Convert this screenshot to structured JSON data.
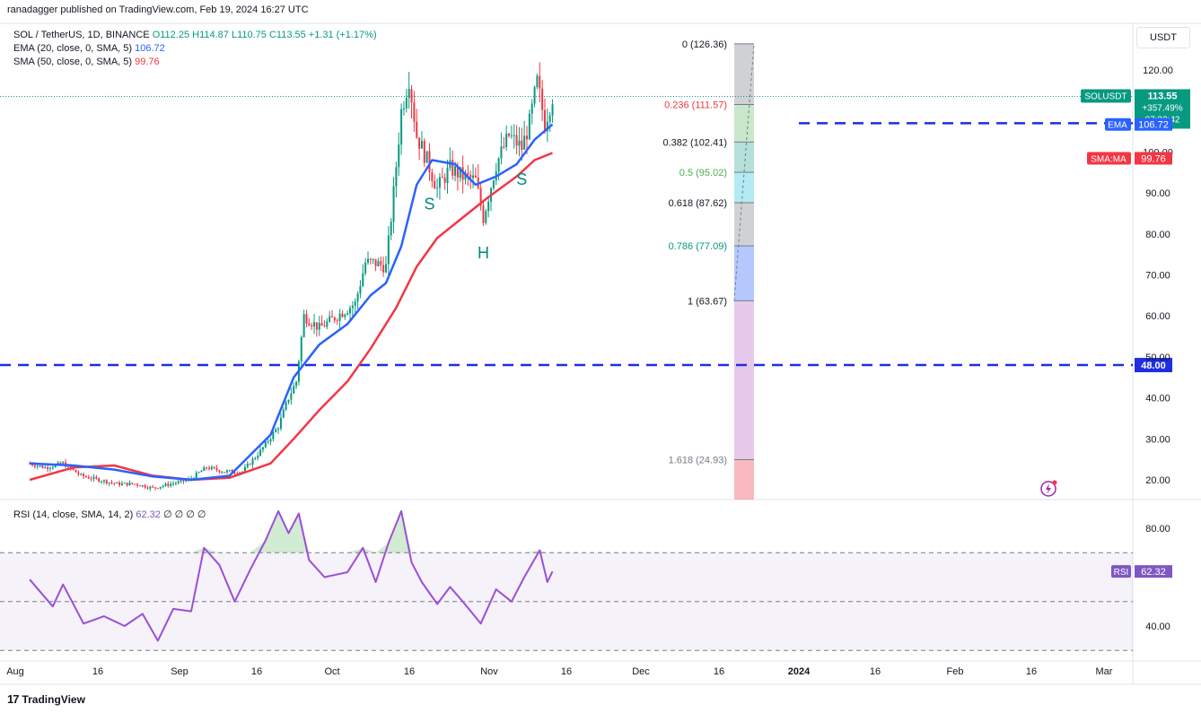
{
  "header": {
    "publisher": "ranadagger published on TradingView.com, Feb 19, 2024 16:27 UTC",
    "symbol": "SOL / TetherUS, 1D, BINANCE",
    "ohlc": "O112.25 H114.87 L110.75 C113.55 +1.31 (+1.17%)",
    "ema_label": "EMA (20, close, 0, SMA, 5)",
    "ema_value": "106.72",
    "sma_label": "SMA (50, close, 0, SMA, 5)",
    "sma_value": "99.76",
    "currency": "USDT",
    "rsi_label": "RSI (14, close, SMA, 14, 2)",
    "rsi_value": "62.32",
    "rsi_extra": "∅ ∅ ∅ ∅"
  },
  "footer": {
    "brand": "TradingView"
  },
  "colors": {
    "up": "#089981",
    "down": "#f23645",
    "ema": "#2962ff",
    "sma": "#f23645",
    "rsi": "#9c4fd6",
    "level": "#1f2fe0",
    "pattern": "#00897b"
  },
  "chart_data": {
    "type": "line",
    "x_ticks": [
      "Aug",
      "16",
      "Sep",
      "16",
      "Oct",
      "16",
      "Nov",
      "16",
      "Dec",
      "16",
      "2024",
      "16",
      "Feb",
      "16",
      "Mar"
    ],
    "y_ticks": [
      "120.00",
      "110.00",
      "100.00",
      "90.00",
      "80.00",
      "70.00",
      "60.00",
      "50.00",
      "40.00",
      "30.00",
      "20.00"
    ],
    "ylim": [
      10,
      126
    ],
    "price_series": {
      "name": "SOLUSDT",
      "x": [
        "Jul 30",
        "Aug 05",
        "Aug 12",
        "Aug 19",
        "Aug 26",
        "Sep 02",
        "Sep 09",
        "Sep 16",
        "Sep 23",
        "Sep 30",
        "Oct 07",
        "Oct 14",
        "Oct 21",
        "Oct 28",
        "Nov 04",
        "Nov 08",
        "Nov 11",
        "Nov 14",
        "Nov 20",
        "Nov 27",
        "Dec 04",
        "Dec 08",
        "Dec 11",
        "Dec 16",
        "Dec 19",
        "Dec 22",
        "Dec 25",
        "Dec 28",
        "Jan 01",
        "Jan 05",
        "Jan 10",
        "Jan 15",
        "Jan 20",
        "Jan 23",
        "Jan 28",
        "Feb 02",
        "Feb 07",
        "Feb 10",
        "Feb 13",
        "Feb 16",
        "Feb 19"
      ],
      "values": [
        24,
        23,
        24,
        21,
        20,
        19,
        19,
        18,
        19,
        20,
        23,
        22,
        22,
        27,
        33,
        40,
        44,
        60,
        57,
        60,
        63,
        73,
        73,
        72,
        90,
        110,
        118,
        104,
        98,
        91,
        96,
        94,
        93,
        84,
        97,
        104,
        101,
        107,
        117,
        107,
        113.55
      ]
    },
    "ema_series": {
      "name": "EMA",
      "x": [
        "Jul 30",
        "Aug 16",
        "Sep 01",
        "Sep 16",
        "Oct 01",
        "Oct 16",
        "Nov 01",
        "Nov 10",
        "Nov 20",
        "Dec 01",
        "Dec 10",
        "Dec 16",
        "Dec 22",
        "Dec 28",
        "Jan 03",
        "Jan 12",
        "Jan 20",
        "Jan 28",
        "Feb 05",
        "Feb 12",
        "Feb 19"
      ],
      "values": [
        24,
        23.5,
        22.5,
        20.8,
        20,
        21,
        31,
        45,
        53,
        58,
        65,
        68,
        77,
        92,
        98,
        97,
        92,
        94,
        97,
        103,
        106.72
      ]
    },
    "sma_series": {
      "name": "SMA:MA",
      "x": [
        "Jul 30",
        "Aug 16",
        "Sep 01",
        "Sep 16",
        "Oct 01",
        "Oct 16",
        "Nov 01",
        "Nov 10",
        "Nov 20",
        "Dec 01",
        "Dec 10",
        "Dec 20",
        "Dec 28",
        "Jan 05",
        "Jan 15",
        "Jan 25",
        "Feb 05",
        "Feb 12",
        "Feb 19"
      ],
      "values": [
        20,
        23,
        23.5,
        21,
        20,
        20.5,
        24,
        30,
        37,
        44,
        52,
        62,
        72,
        79,
        84,
        89,
        94,
        98,
        99.76
      ]
    },
    "horizontal_levels": [
      {
        "value": 107,
        "label": "107.00"
      },
      {
        "value": 48,
        "label": "48.00"
      }
    ],
    "price_labels": [
      {
        "name": "SOLUSDT",
        "value": "113.55",
        "change": "+357.49%",
        "timer": "07:32:42"
      },
      {
        "name": "EMA",
        "value": "106.72"
      },
      {
        "name": "SMA:MA",
        "value": "99.76"
      }
    ],
    "fibonacci": [
      {
        "ratio": "0",
        "price": 126.36,
        "label": "0 (126.36)"
      },
      {
        "ratio": "0.236",
        "price": 111.57,
        "label": "0.236 (111.57)"
      },
      {
        "ratio": "0.382",
        "price": 102.41,
        "label": "0.382 (102.41)"
      },
      {
        "ratio": "0.5",
        "price": 95.02,
        "label": "0.5 (95.02)"
      },
      {
        "ratio": "0.618",
        "price": 87.62,
        "label": "0.618 (87.62)"
      },
      {
        "ratio": "0.786",
        "price": 77.09,
        "label": "0.786 (77.09)"
      },
      {
        "ratio": "1",
        "price": 63.67,
        "label": "1 (63.67)"
      },
      {
        "ratio": "1.618",
        "price": 24.93,
        "label": "1.618 (24.93)"
      }
    ],
    "annotations": [
      {
        "text": "S",
        "x": "Jan 02",
        "value": 86
      },
      {
        "text": "H",
        "x": "Jan 23",
        "value": 74
      },
      {
        "text": "S",
        "x": "Feb 07",
        "value": 92
      }
    ],
    "rsi": {
      "ylim": [
        30,
        90
      ],
      "y_ticks": [
        "80.00",
        "40.00"
      ],
      "bands": [
        70,
        50,
        30
      ],
      "x": [
        "Jul 30",
        "Aug 08",
        "Aug 12",
        "Aug 20",
        "Aug 28",
        "Sep 05",
        "Sep 12",
        "Sep 18",
        "Sep 24",
        "Oct 01",
        "Oct 06",
        "Oct 12",
        "Oct 18",
        "Oct 24",
        "Oct 30",
        "Nov 04",
        "Nov 08",
        "Nov 12",
        "Nov 16",
        "Nov 22",
        "Dec 01",
        "Dec 07",
        "Dec 12",
        "Dec 17",
        "Dec 22",
        "Dec 26",
        "Dec 30",
        "Jan 05",
        "Jan 10",
        "Jan 15",
        "Jan 22",
        "Jan 28",
        "Feb 03",
        "Feb 08",
        "Feb 14",
        "Feb 17",
        "Feb 19"
      ],
      "values": [
        59,
        48,
        57,
        41,
        44,
        40,
        45,
        34,
        47,
        46,
        72,
        65,
        50,
        63,
        75,
        87,
        78,
        86,
        67,
        60,
        62,
        72,
        58,
        74,
        87,
        66,
        58,
        49,
        56,
        50,
        41,
        55,
        50,
        60,
        71,
        58,
        62.32
      ]
    }
  }
}
